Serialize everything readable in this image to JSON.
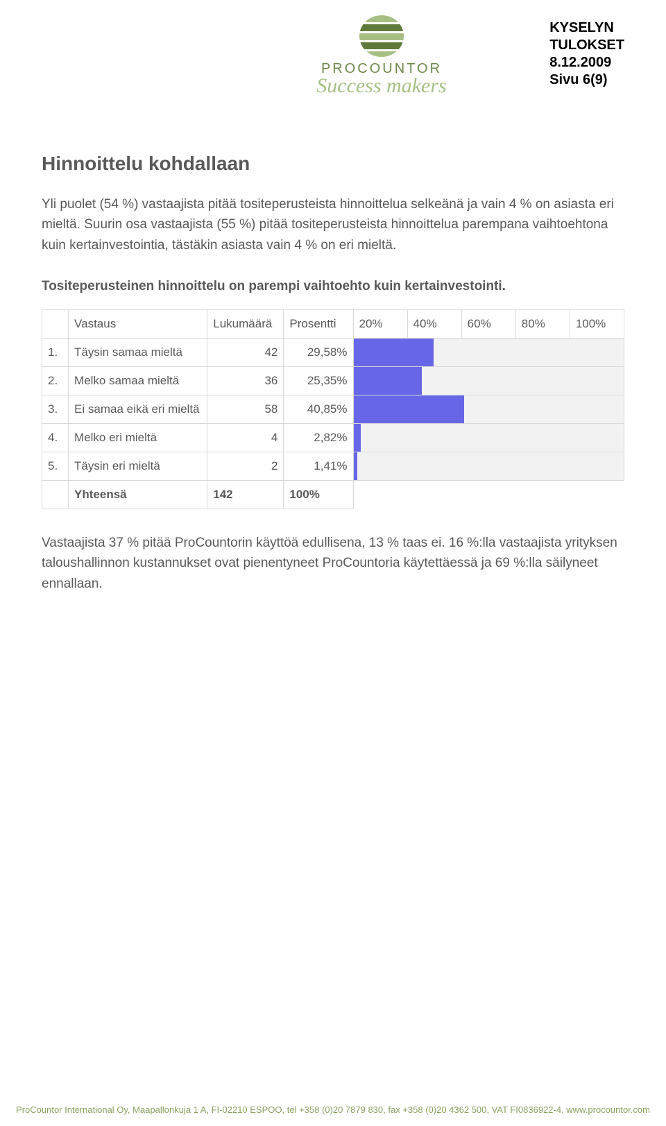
{
  "header": {
    "brand": "PROCOUNTOR",
    "tagline": "Success makers",
    "meta_line1": "KYSELYN",
    "meta_line2": "TULOKSET",
    "meta_date": "8.12.2009",
    "meta_page": "Sivu 6(9)",
    "logo_colors": {
      "dark": "#5f7a3a",
      "light": "#a7bf83"
    }
  },
  "section": {
    "title": "Hinnoittelu kohdallaan",
    "intro": "Yli puolet (54 %) vastaajista pitää tositeperusteista hinnoittelua selkeänä ja vain 4 % on asiasta eri mieltä. Suurin osa vastaajista (55 %) pitää tositeperusteista hinnoittelua parempana vaihtoehtona kuin kertainvestointia, tästäkin asiasta vain 4 % on eri mieltä.",
    "question": "Tositeperusteinen hinnoittelu on parempi vaihtoehto kuin kertainvestointi.",
    "outro": "Vastaajista 37 % pitää ProCountorin käyttöä edullisena, 13 % taas ei. 16 %:lla vastaajista yrityksen taloushallinnon kustannukset ovat pienentyneet ProCountoria käytettäessä ja 69 %:lla säilyneet ennallaan."
  },
  "table": {
    "headers": {
      "answer": "Vastaus",
      "count": "Lukumäärä",
      "percent": "Prosentti",
      "ticks": [
        "20%",
        "40%",
        "60%",
        "80%",
        "100%"
      ]
    },
    "rows": [
      {
        "idx": "1.",
        "label": "Täysin samaa mieltä",
        "count": 42,
        "percent_str": "29,58%",
        "percent": 29.58
      },
      {
        "idx": "2.",
        "label": "Melko samaa mieltä",
        "count": 36,
        "percent_str": "25,35%",
        "percent": 25.35
      },
      {
        "idx": "3.",
        "label": "Ei samaa eikä eri mieltä",
        "count": 58,
        "percent_str": "40,85%",
        "percent": 40.85
      },
      {
        "idx": "4.",
        "label": "Melko eri mieltä",
        "count": 4,
        "percent_str": "2,82%",
        "percent": 2.82
      },
      {
        "idx": "5.",
        "label": "Täysin eri mieltä",
        "count": 2,
        "percent_str": "1,41%",
        "percent": 1.41
      }
    ],
    "total": {
      "label": "Yhteensä",
      "count": 142,
      "percent_str": "100%"
    },
    "bar_color": "#6666e6",
    "bar_bg": "#f2f2f2",
    "border_color": "#d9d9d9"
  },
  "footer": {
    "text": "ProCountor International Oy, Maapallonkuja 1 A, FI-02210 ESPOO, tel +358 (0)20 7879 830, fax +358 (0)20 4362 500, VAT FI0836922-4, www.procountor.com"
  }
}
